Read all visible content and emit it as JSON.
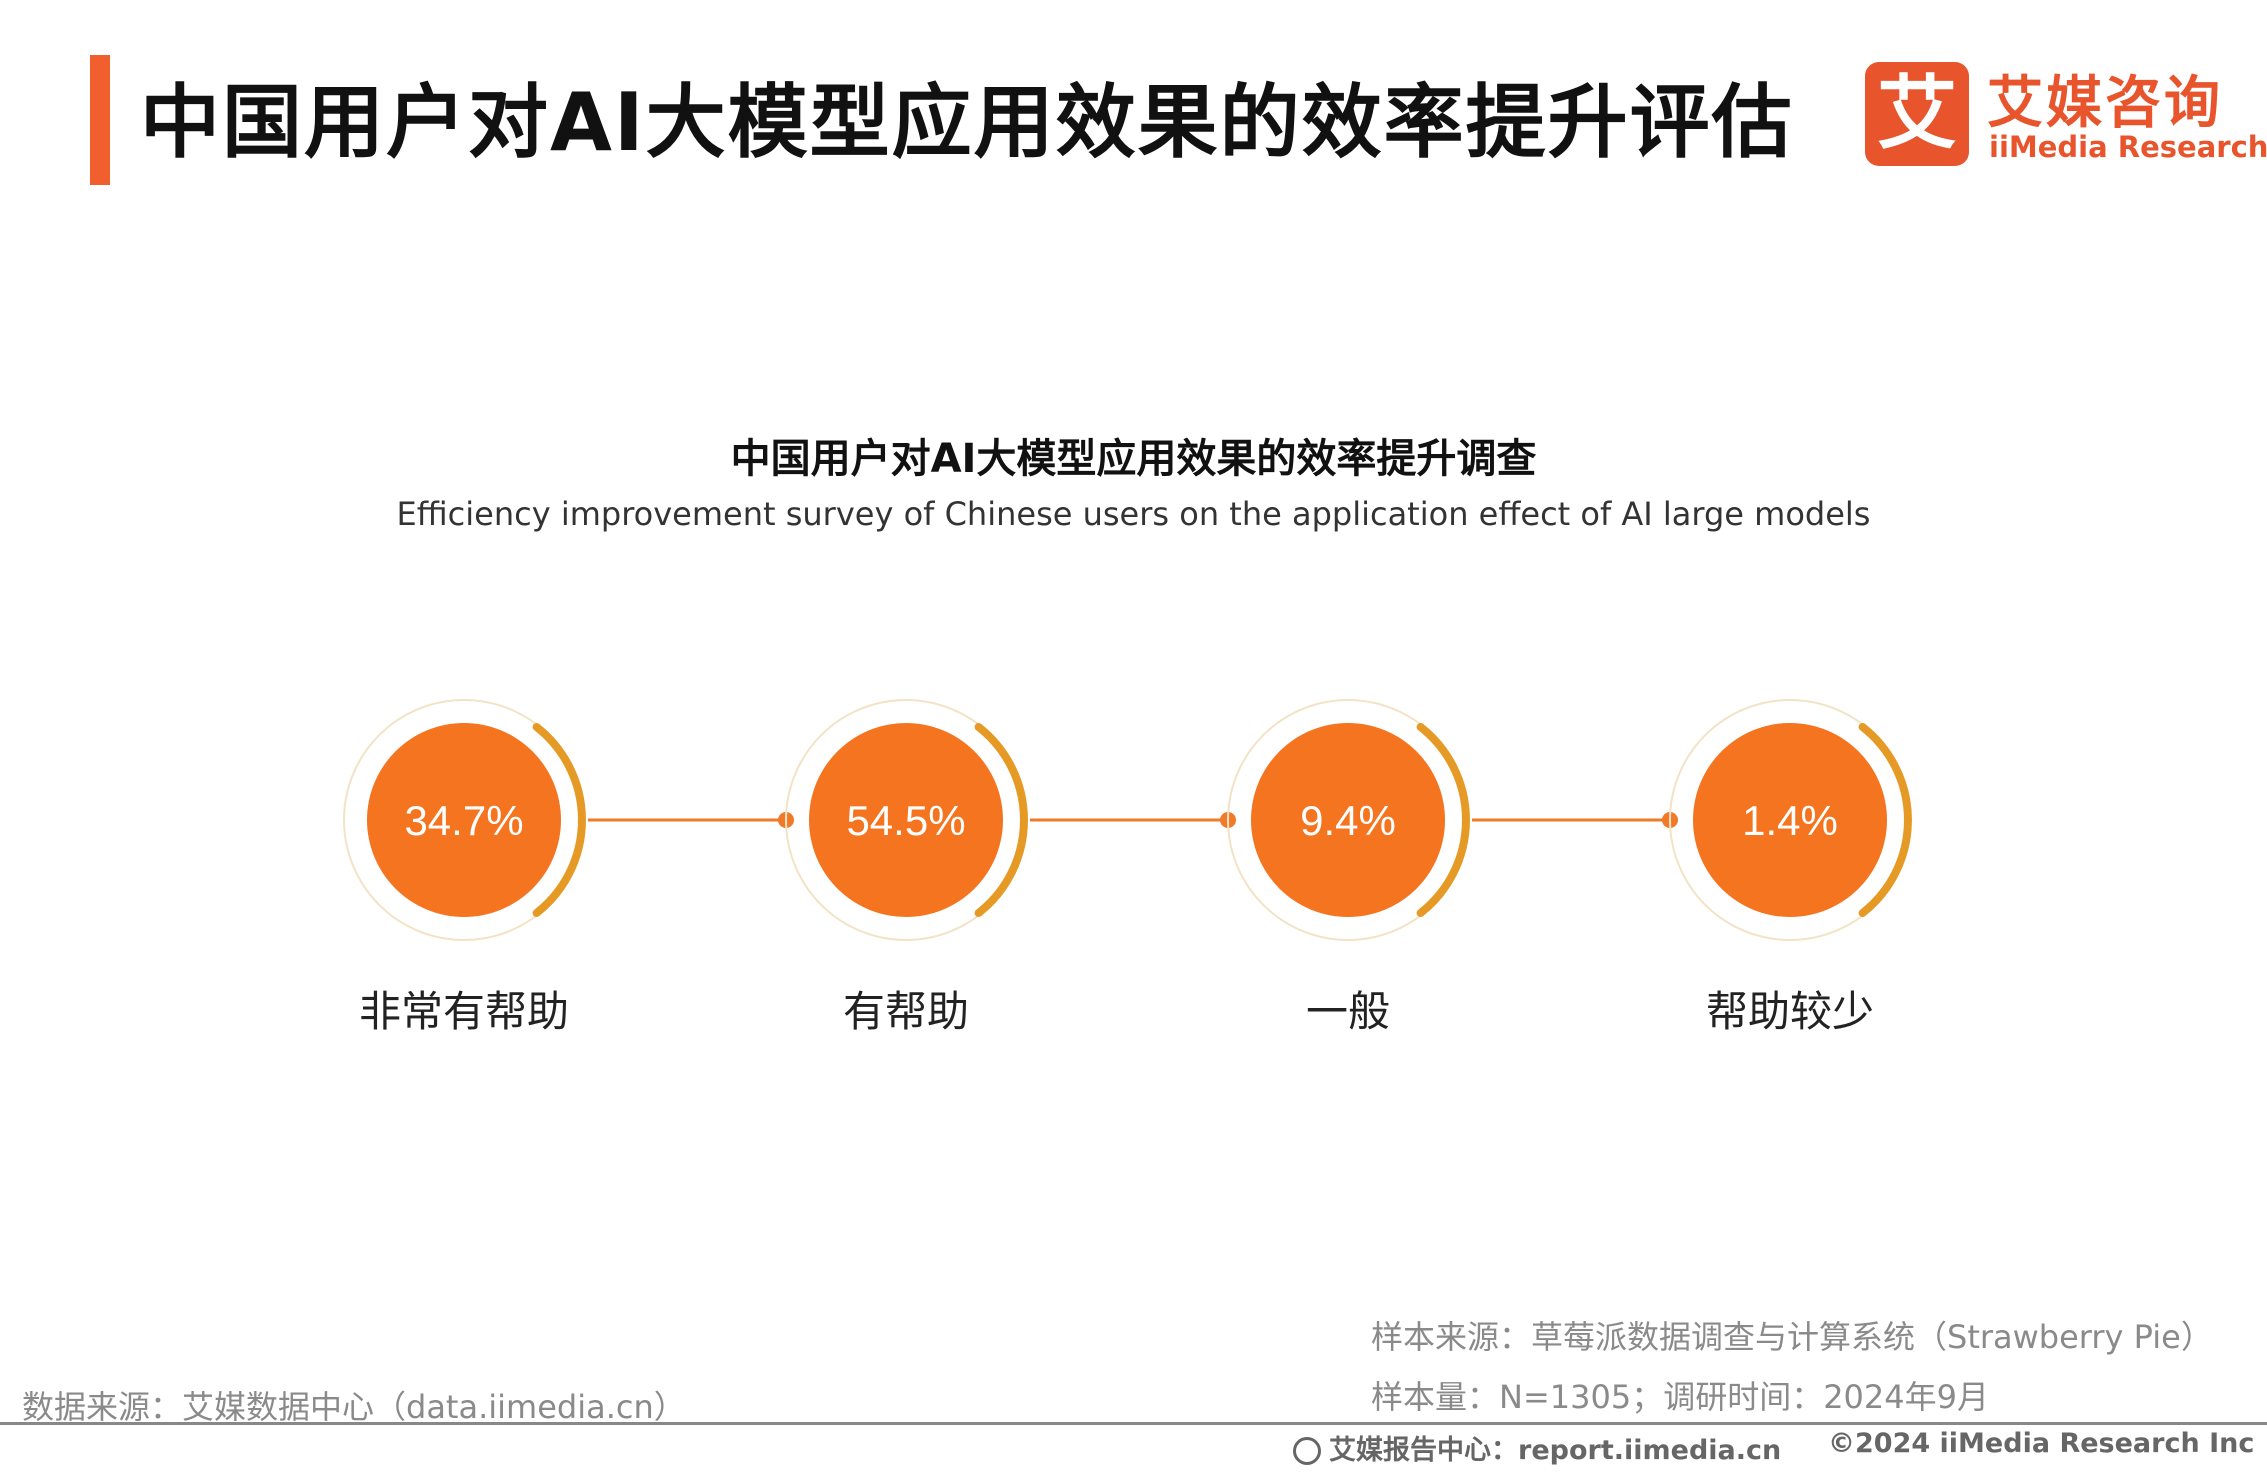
{
  "header": {
    "title": "中国用户对AI大模型应用效果的效率提升评估",
    "accent_color": "#f15f2f"
  },
  "logo": {
    "mark": "艾",
    "name_cn": "艾媒咨询",
    "name_en": "iiMedia Research",
    "color": "#e8542c"
  },
  "chart_data": {
    "type": "bubble-steps",
    "title": "中国用户对AI大模型应用效果的效率提升调查",
    "subtitle": "Efficiency improvement survey of Chinese users on the application effect of AI large models",
    "categories": [
      "非常有帮助",
      "有帮助",
      "一般",
      "帮助较少"
    ],
    "values": [
      34.7,
      54.5,
      9.4,
      1.4
    ],
    "value_labels": [
      "34.7%",
      "54.5%",
      "9.4%",
      "1.4%"
    ],
    "unit": "%",
    "colors": {
      "fill": "#f57420",
      "arc": "#e69a26",
      "ring": "#f3e3c6",
      "connector": "#f07a2a",
      "label_text": "#ffffff"
    }
  },
  "footer": {
    "sample_source": "样本来源：草莓派数据调查与计算系统（Strawberry Pie）",
    "sample_size": "样本量：N=1305；调研时间：2024年9月",
    "data_source": "数据来源：艾媒数据中心（data.iimedia.cn）",
    "report_center": "艾媒报告中心：report.iimedia.cn",
    "copyright": "©2024  iiMedia Research  Inc"
  }
}
